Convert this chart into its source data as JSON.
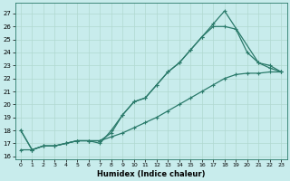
{
  "xlabel": "Humidex (Indice chaleur)",
  "bg_color": "#c8ecec",
  "line_color": "#2a7a6a",
  "grid_color": "#b0d8d0",
  "xlim": [
    -0.5,
    23.5
  ],
  "ylim": [
    15.8,
    27.8
  ],
  "xticks": [
    0,
    1,
    2,
    3,
    4,
    5,
    6,
    7,
    8,
    9,
    10,
    11,
    12,
    13,
    14,
    15,
    16,
    17,
    18,
    19,
    20,
    21,
    22,
    23
  ],
  "yticks": [
    16,
    17,
    18,
    19,
    20,
    21,
    22,
    23,
    24,
    25,
    26,
    27
  ],
  "line1_x": [
    0,
    1,
    2,
    3,
    4,
    5,
    6,
    7,
    8,
    9,
    10,
    11,
    12,
    13,
    14,
    15,
    16,
    17,
    18,
    21,
    22,
    23
  ],
  "line1_y": [
    18.0,
    16.5,
    16.8,
    16.8,
    17.0,
    17.2,
    17.2,
    17.2,
    17.8,
    19.2,
    20.2,
    20.5,
    21.5,
    22.5,
    23.2,
    24.2,
    25.2,
    26.2,
    27.2,
    23.2,
    23.0,
    22.5
  ],
  "line2_x": [
    0,
    1,
    2,
    3,
    4,
    5,
    6,
    7,
    8,
    9,
    10,
    11,
    12,
    13,
    14,
    15,
    16,
    17,
    18,
    19,
    20,
    21,
    22,
    23
  ],
  "line2_y": [
    18.0,
    16.5,
    16.8,
    16.8,
    17.0,
    17.2,
    17.2,
    17.0,
    18.0,
    19.2,
    20.2,
    20.5,
    21.5,
    22.5,
    23.2,
    24.2,
    25.2,
    26.0,
    26.0,
    25.8,
    24.0,
    23.2,
    22.8,
    22.5
  ],
  "line3_x": [
    0,
    1,
    2,
    3,
    4,
    5,
    6,
    7,
    8,
    9,
    10,
    11,
    12,
    13,
    14,
    15,
    16,
    17,
    18,
    19,
    20,
    21,
    22,
    23
  ],
  "line3_y": [
    16.5,
    16.5,
    16.8,
    16.8,
    17.0,
    17.2,
    17.2,
    17.2,
    17.5,
    17.8,
    18.2,
    18.6,
    19.0,
    19.5,
    20.0,
    20.5,
    21.0,
    21.5,
    22.0,
    22.3,
    22.4,
    22.4,
    22.5,
    22.5
  ]
}
